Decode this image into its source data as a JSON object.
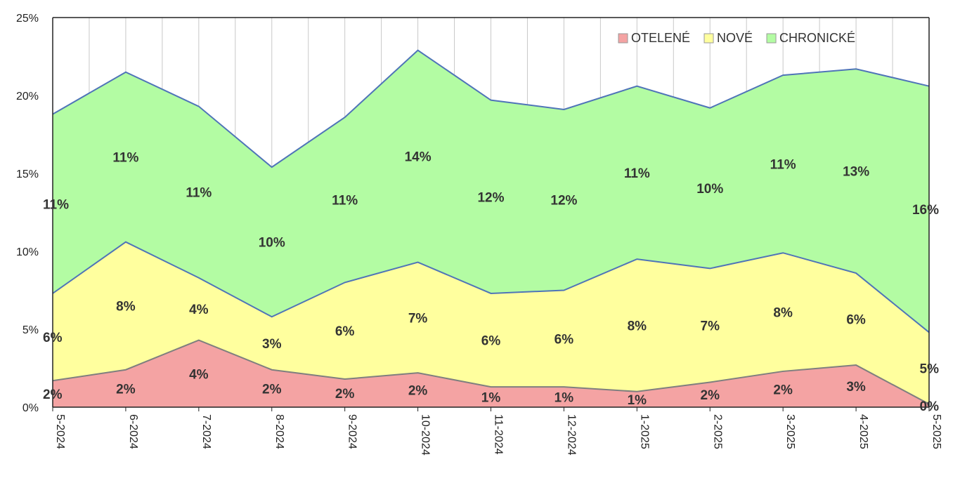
{
  "colors": {
    "otelene": "#f4a3a3",
    "nove": "#ffff9e",
    "chronicke": "#b3fca3",
    "boundary": "#4f74b8",
    "boundary_low": "#7f7f7f",
    "grid": "#c8c8c8"
  },
  "chart_data": {
    "type": "area",
    "stacked": true,
    "categories": [
      "5-2024",
      "6-2024",
      "7-2024",
      "8-2024",
      "9-2024",
      "10-2024",
      "11-2024",
      "12-2024",
      "1-2025",
      "2-2025",
      "3-2025",
      "4-2025",
      "5-2025"
    ],
    "series": [
      {
        "name": "OTELENÉ",
        "values": [
          1.7,
          2.4,
          4.3,
          2.4,
          1.8,
          2.2,
          1.3,
          1.3,
          1.0,
          1.6,
          2.3,
          2.7,
          0.2
        ],
        "labels": [
          "2%",
          "2%",
          "4%",
          "2%",
          "2%",
          "2%",
          "1%",
          "1%",
          "1%",
          "2%",
          "2%",
          "3%",
          "0%"
        ]
      },
      {
        "name": "NOVÉ",
        "values": [
          5.6,
          8.2,
          4.0,
          3.4,
          6.2,
          7.1,
          6.0,
          6.2,
          8.5,
          7.3,
          7.6,
          5.9,
          4.6
        ],
        "labels": [
          "6%",
          "8%",
          "4%",
          "3%",
          "6%",
          "7%",
          "6%",
          "6%",
          "8%",
          "7%",
          "8%",
          "6%",
          "5%"
        ]
      },
      {
        "name": "CHRONICKÉ",
        "values": [
          11.5,
          10.9,
          11.0,
          9.6,
          10.6,
          13.6,
          12.4,
          11.6,
          11.1,
          10.3,
          11.4,
          13.1,
          15.8
        ],
        "labels": [
          "11%",
          "11%",
          "11%",
          "10%",
          "11%",
          "14%",
          "12%",
          "12%",
          "11%",
          "10%",
          "11%",
          "13%",
          "16%"
        ]
      }
    ],
    "yticks": [
      "0%",
      "5%",
      "10%",
      "15%",
      "20%",
      "25%"
    ],
    "ylim": [
      0,
      25
    ],
    "grid": "vertical",
    "legend": "top-right",
    "title": "",
    "xlabel": "",
    "ylabel": ""
  }
}
